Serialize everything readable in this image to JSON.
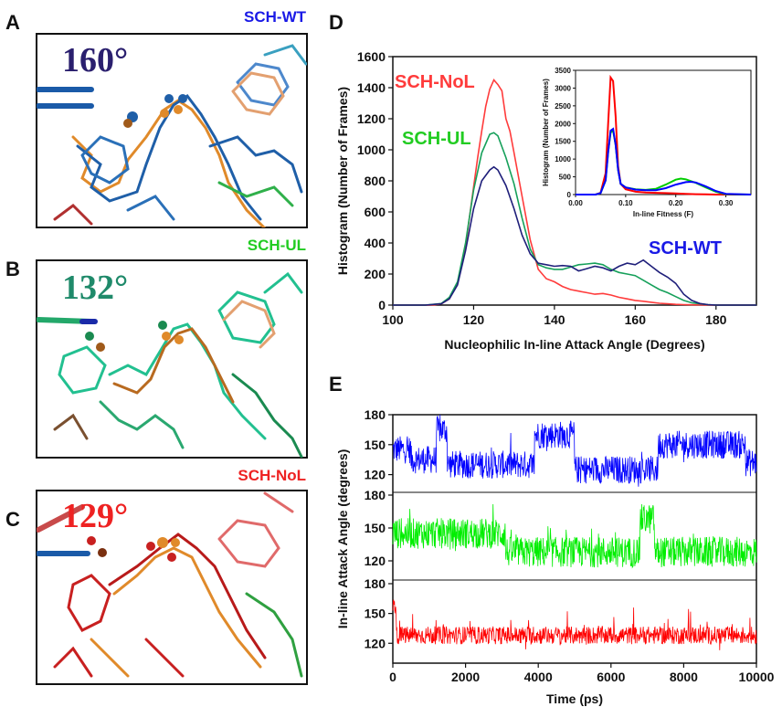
{
  "panels": {
    "a": {
      "letter": "A",
      "title": "SCH-WT",
      "angle": "160°",
      "title_color": "#1a1ae6",
      "angle_color": "#2a1f6e"
    },
    "b": {
      "letter": "B",
      "title": "SCH-UL",
      "angle": "132°",
      "title_color": "#22cc22",
      "angle_color": "#1f8a6a"
    },
    "c": {
      "letter": "C",
      "title": "SCH-NoL",
      "angle": "129°",
      "title_color": "#ee2222",
      "angle_color": "#ee2222"
    },
    "d": {
      "letter": "D"
    },
    "e": {
      "letter": "E"
    }
  },
  "colors": {
    "wt": "#1f1f7a",
    "ul": "#16a05a",
    "nol": "#ff3b3b",
    "e_wt": "#0000ff",
    "e_ul": "#00ee00",
    "e_nol": "#ff0000"
  },
  "chart_data": [
    {
      "id": "D",
      "type": "line",
      "title": "",
      "xlabel": "Nucleophilic In-line Attack Angle (Degrees)",
      "ylabel": "Histogram (Number of Frames)",
      "xlim": [
        100,
        190
      ],
      "ylim": [
        0,
        1600
      ],
      "xticks": [
        "100",
        "120",
        "140",
        "160",
        "180"
      ],
      "yticks": [
        "0",
        "200",
        "400",
        "600",
        "800",
        "1000",
        "1200",
        "1400",
        "1600"
      ],
      "series": [
        {
          "name": "SCH-NoL",
          "color": "#ff3b3b",
          "x": [
            100,
            105,
            110,
            112,
            114,
            116,
            118,
            120,
            121,
            122,
            123,
            124,
            125,
            126,
            127,
            128,
            129,
            130,
            132,
            134,
            136,
            138,
            140,
            142,
            144,
            146,
            148,
            150,
            152,
            154,
            156,
            158,
            160,
            162,
            164,
            166,
            168,
            170,
            172,
            174,
            176,
            178,
            180,
            190
          ],
          "y": [
            0,
            0,
            0,
            8,
            40,
            140,
            380,
            760,
            950,
            1120,
            1280,
            1390,
            1450,
            1420,
            1380,
            1200,
            1120,
            980,
            700,
            420,
            230,
            170,
            150,
            120,
            100,
            90,
            80,
            70,
            75,
            65,
            50,
            40,
            30,
            25,
            18,
            12,
            8,
            5,
            3,
            2,
            1,
            0,
            0,
            0
          ]
        },
        {
          "name": "SCH-UL",
          "color": "#16a05a",
          "x": [
            100,
            108,
            112,
            114,
            116,
            118,
            120,
            122,
            124,
            125,
            126,
            128,
            130,
            132,
            134,
            136,
            138,
            140,
            142,
            144,
            146,
            148,
            150,
            152,
            154,
            156,
            158,
            160,
            162,
            164,
            166,
            168,
            170,
            172,
            174,
            176,
            178,
            180,
            190
          ],
          "y": [
            0,
            0,
            10,
            50,
            150,
            400,
            740,
            980,
            1100,
            1110,
            1090,
            950,
            780,
            560,
            360,
            260,
            240,
            230,
            230,
            245,
            260,
            265,
            270,
            260,
            230,
            210,
            200,
            190,
            160,
            130,
            100,
            80,
            55,
            30,
            15,
            8,
            3,
            0,
            0
          ]
        },
        {
          "name": "SCH-WT",
          "color": "#1f1f7a",
          "x": [
            100,
            108,
            112,
            114,
            116,
            118,
            120,
            122,
            124,
            125,
            126,
            128,
            130,
            132,
            134,
            136,
            138,
            140,
            142,
            144,
            146,
            148,
            150,
            152,
            154,
            156,
            158,
            160,
            162,
            164,
            166,
            168,
            170,
            172,
            174,
            176,
            178,
            180,
            190
          ],
          "y": [
            0,
            0,
            8,
            40,
            130,
            350,
            620,
            800,
            870,
            890,
            870,
            770,
            620,
            450,
            330,
            270,
            260,
            250,
            255,
            250,
            220,
            235,
            250,
            240,
            220,
            250,
            270,
            260,
            290,
            250,
            210,
            180,
            140,
            70,
            30,
            10,
            3,
            0,
            0
          ]
        }
      ]
    },
    {
      "id": "D-inset",
      "type": "line",
      "title": "",
      "xlabel": "In-line Fitness (F)",
      "ylabel": "Histogram (Number of Frames)",
      "xlim": [
        0.0,
        0.35
      ],
      "ylim": [
        0,
        3500
      ],
      "xticks": [
        "0.00",
        "0.10",
        "0.20",
        "0.30"
      ],
      "yticks": [
        "0",
        "500",
        "1000",
        "1500",
        "2000",
        "2500",
        "3000",
        "3500"
      ],
      "series": [
        {
          "name": "SCH-NoL",
          "color": "#ff0000",
          "x": [
            0,
            0.04,
            0.05,
            0.06,
            0.065,
            0.07,
            0.075,
            0.08,
            0.085,
            0.09,
            0.1,
            0.12,
            0.14,
            0.16,
            0.18,
            0.2,
            0.22,
            0.24,
            0.26,
            0.28,
            0.3,
            0.35
          ],
          "y": [
            0,
            0,
            50,
            600,
            2000,
            3300,
            3200,
            2200,
            800,
            300,
            150,
            80,
            60,
            50,
            40,
            30,
            20,
            10,
            5,
            0,
            0,
            0
          ]
        },
        {
          "name": "SCH-UL",
          "color": "#00cc00",
          "x": [
            0,
            0.04,
            0.05,
            0.06,
            0.065,
            0.07,
            0.075,
            0.08,
            0.085,
            0.09,
            0.1,
            0.12,
            0.14,
            0.16,
            0.18,
            0.2,
            0.21,
            0.22,
            0.24,
            0.26,
            0.28,
            0.3,
            0.35
          ],
          "y": [
            0,
            0,
            40,
            400,
            1200,
            1750,
            1800,
            1400,
            700,
            300,
            200,
            150,
            130,
            160,
            280,
            420,
            450,
            430,
            330,
            200,
            80,
            10,
            0
          ]
        },
        {
          "name": "SCH-WT",
          "color": "#0000ff",
          "x": [
            0,
            0.04,
            0.05,
            0.06,
            0.065,
            0.07,
            0.075,
            0.08,
            0.085,
            0.09,
            0.1,
            0.12,
            0.14,
            0.16,
            0.18,
            0.2,
            0.22,
            0.23,
            0.24,
            0.26,
            0.28,
            0.3,
            0.35
          ],
          "y": [
            0,
            0,
            40,
            400,
            1200,
            1800,
            1850,
            1400,
            700,
            300,
            200,
            140,
            120,
            120,
            180,
            280,
            350,
            360,
            340,
            230,
            100,
            20,
            0
          ]
        }
      ]
    },
    {
      "id": "E",
      "type": "line",
      "title": "",
      "xlabel": "Time (ps)",
      "ylabel": "In-line Attack Angle (degrees)",
      "xlim": [
        0,
        10000
      ],
      "xticks": [
        "0",
        "2000",
        "4000",
        "6000",
        "8000",
        "10000"
      ],
      "panels": [
        {
          "name": "SCH-WT",
          "color": "#0000ff",
          "ylim": [
            105,
            180
          ],
          "yticks": [
            "180",
            "150",
            "120"
          ],
          "segments": [
            [
              0,
              500,
              145
            ],
            [
              500,
              1200,
              135
            ],
            [
              1200,
              1500,
              165
            ],
            [
              1500,
              3500,
              130
            ],
            [
              3500,
              3900,
              130
            ],
            [
              3900,
              5000,
              160
            ],
            [
              5000,
              7300,
              125
            ],
            [
              7300,
              9700,
              150
            ],
            [
              9700,
              10000,
              132
            ]
          ]
        },
        {
          "name": "SCH-UL",
          "color": "#00ee00",
          "ylim": [
            105,
            180
          ],
          "yticks": [
            "180",
            "150",
            "120"
          ],
          "segments": [
            [
              0,
              3100,
              145
            ],
            [
              3100,
              6800,
              128
            ],
            [
              6800,
              7200,
              158
            ],
            [
              7200,
              10000,
              128
            ]
          ]
        },
        {
          "name": "SCH-NoL",
          "color": "#ff0000",
          "ylim": [
            100,
            180
          ],
          "yticks": [
            "180",
            "150",
            "120"
          ],
          "segments": [
            [
              0,
              100,
              158
            ],
            [
              100,
              10000,
              128
            ]
          ]
        }
      ]
    }
  ]
}
